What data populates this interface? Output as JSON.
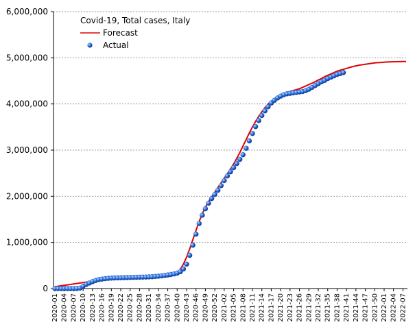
{
  "chart_data": {
    "type": "line",
    "title": "Covid-19, Total cases, Italy",
    "legend": "upper left",
    "grid": true,
    "categories": [
      "2020-01",
      null,
      null,
      "2020-04",
      null,
      null,
      "2020-07",
      null,
      null,
      "2020-10",
      null,
      null,
      "2020-13",
      null,
      null,
      "2020-16",
      null,
      null,
      "2020-19",
      null,
      null,
      "2020-22",
      null,
      null,
      "2020-25",
      null,
      null,
      "2020-28",
      null,
      null,
      "2020-31",
      null,
      null,
      "2020-34",
      null,
      null,
      "2020-37",
      null,
      null,
      "2020-40",
      null,
      null,
      "2020-43",
      null,
      null,
      "2020-46",
      null,
      null,
      "2020-49",
      null,
      null,
      "2020-52",
      null,
      null,
      "2021-02",
      null,
      null,
      "2021-05",
      null,
      null,
      "2021-08",
      null,
      null,
      "2021-11",
      null,
      null,
      "2021-14",
      null,
      null,
      "2021-17",
      null,
      null,
      "2021-20",
      null,
      null,
      "2021-23",
      null,
      null,
      "2021-26",
      null,
      null,
      "2021-29",
      null,
      null,
      "2021-32",
      null,
      null,
      "2021-35",
      null,
      null,
      "2021-38",
      null,
      null,
      "2021-41",
      null,
      null,
      "2021-44",
      null,
      null,
      "2021-47",
      null,
      null,
      "2021-50",
      null,
      null,
      "2022-01",
      null,
      null,
      "2022-04",
      null,
      null,
      "2022-07",
      null
    ],
    "ylim": [
      0,
      6000000
    ],
    "yticks": [
      0,
      {
        "value": 1000000,
        "label": "1,000,000"
      },
      {
        "value": 2000000,
        "label": "2,000,000"
      },
      {
        "value": 3000000,
        "label": "3,000,000"
      },
      {
        "value": 4000000,
        "label": "4,000,000"
      },
      {
        "value": 5000000,
        "label": "5,000,000"
      },
      {
        "value": 6000000,
        "label": "6,000,000"
      }
    ],
    "series": [
      {
        "name": "Forecast",
        "color": "#e00000",
        "mode": "line",
        "values": [
          40000,
          50000,
          60000,
          70000,
          80000,
          90000,
          100000,
          110000,
          120000,
          130000,
          140000,
          150000,
          160000,
          170000,
          180000,
          190000,
          195000,
          200000,
          205000,
          210000,
          210000,
          212000,
          214000,
          216000,
          218000,
          220000,
          222000,
          224000,
          226000,
          228000,
          230000,
          233000,
          236000,
          240000,
          245000,
          250000,
          260000,
          275000,
          300000,
          340000,
          420000,
          530000,
          680000,
          860000,
          1060000,
          1260000,
          1450000,
          1620000,
          1760000,
          1880000,
          1990000,
          2090000,
          2190000,
          2290000,
          2390000,
          2490000,
          2590000,
          2700000,
          2820000,
          2950000,
          3090000,
          3230000,
          3370000,
          3500000,
          3620000,
          3730000,
          3830000,
          3920000,
          4000000,
          4060000,
          4110000,
          4160000,
          4200000,
          4230000,
          4250000,
          4270000,
          4290000,
          4310000,
          4330000,
          4360000,
          4390000,
          4420000,
          4450000,
          4480000,
          4520000,
          4550000,
          4590000,
          4620000,
          4650000,
          4680000,
          4710000,
          4730000,
          4750000,
          4770000,
          4790000,
          4810000,
          4825000,
          4840000,
          4850000,
          4860000,
          4870000,
          4880000,
          4890000,
          4895000,
          4900000,
          4905000,
          4910000,
          4912000,
          4914000,
          4916000,
          4918000,
          4920000,
          4920000
        ]
      },
      {
        "name": "Actual",
        "color": "#1f5fd0",
        "mode": "markers",
        "values": [
          0,
          0,
          0,
          0,
          0,
          0,
          0,
          2000,
          10000,
          50000,
          90000,
          120000,
          150000,
          175000,
          195000,
          205000,
          215000,
          222000,
          227000,
          230000,
          232000,
          234000,
          236000,
          238000,
          240000,
          242000,
          244000,
          246000,
          248000,
          250000,
          253000,
          256000,
          262000,
          268000,
          276000,
          285000,
          295000,
          305000,
          318000,
          335000,
          365000,
          425000,
          530000,
          720000,
          940000,
          1180000,
          1410000,
          1590000,
          1730000,
          1850000,
          1950000,
          2040000,
          2130000,
          2230000,
          2340000,
          2440000,
          2530000,
          2620000,
          2710000,
          2800000,
          2900000,
          3040000,
          3200000,
          3360000,
          3510000,
          3640000,
          3750000,
          3850000,
          3940000,
          4020000,
          4080000,
          4130000,
          4170000,
          4200000,
          4220000,
          4230000,
          4240000,
          4250000,
          4260000,
          4270000,
          4290000,
          4320000,
          4360000,
          4400000,
          4440000,
          4480000,
          4510000,
          4550000,
          4580000,
          4610000,
          4640000,
          4660000,
          4680000,
          null,
          null,
          null,
          null,
          null,
          null,
          null,
          null,
          null,
          null,
          null,
          null,
          null,
          null,
          null,
          null,
          null,
          null,
          null,
          null
        ]
      }
    ]
  }
}
